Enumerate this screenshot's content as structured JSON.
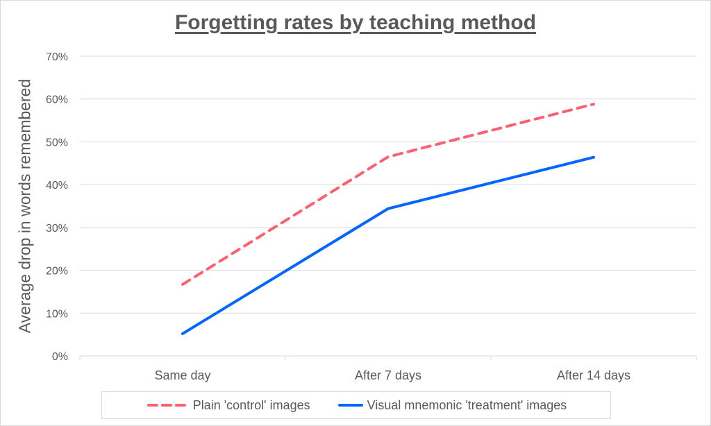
{
  "chart_data": {
    "type": "line",
    "title": "Forgetting rates by teaching method",
    "xlabel": "",
    "ylabel": "Average drop in words remembered",
    "categories": [
      "Same day",
      "After 7 days",
      "After 14 days"
    ],
    "ylim": [
      0,
      70
    ],
    "yticks": [
      0,
      10,
      20,
      30,
      40,
      50,
      60,
      70
    ],
    "ytick_labels": [
      "0%",
      "10%",
      "20%",
      "30%",
      "40%",
      "50%",
      "60%",
      "70%"
    ],
    "grid": true,
    "legend_position": "bottom",
    "series": [
      {
        "name": "Plain 'control' images",
        "values": [
          16.7,
          46.5,
          58.8
        ],
        "color": "#ff6070",
        "style": "dashed"
      },
      {
        "name": "Visual mnemonic 'treatment' images",
        "values": [
          5.2,
          34.4,
          46.4
        ],
        "color": "#0066ff",
        "style": "solid"
      }
    ]
  }
}
